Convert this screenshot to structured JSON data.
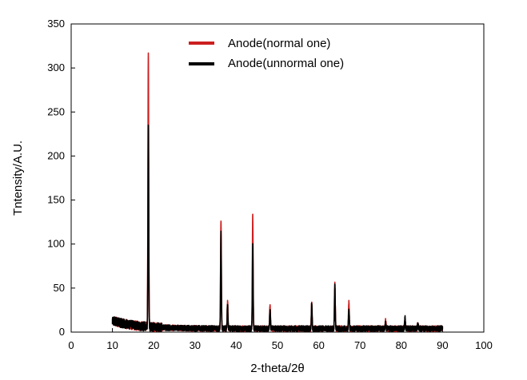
{
  "chart_data": {
    "type": "line",
    "title": "",
    "xlabel": "2-theta/2θ",
    "ylabel": "Tntensity/A.U.",
    "xlim": [
      0,
      100
    ],
    "ylim": [
      0,
      350
    ],
    "xticks": [
      0,
      10,
      20,
      30,
      40,
      50,
      60,
      70,
      80,
      90,
      100
    ],
    "yticks": [
      0,
      50,
      100,
      150,
      200,
      250,
      300,
      350
    ],
    "grid": false,
    "legend_position": "top-center",
    "peaks_note_free": null,
    "series": [
      {
        "name": "Anode(normal one)",
        "color": "#cc1f1f",
        "noise_level": 8,
        "peaks": [
          {
            "x": 18.7,
            "y": 316
          },
          {
            "x": 36.3,
            "y": 131
          },
          {
            "x": 37.9,
            "y": 38
          },
          {
            "x": 44.0,
            "y": 135
          },
          {
            "x": 48.2,
            "y": 34
          },
          {
            "x": 58.3,
            "y": 36
          },
          {
            "x": 63.9,
            "y": 58
          },
          {
            "x": 67.3,
            "y": 36
          },
          {
            "x": 76.2,
            "y": 15
          },
          {
            "x": 80.9,
            "y": 17
          },
          {
            "x": 84.0,
            "y": 11
          }
        ]
      },
      {
        "name": "Anode(unnormal one)",
        "color": "#000000",
        "noise_level": 8,
        "peaks": [
          {
            "x": 18.7,
            "y": 232
          },
          {
            "x": 36.3,
            "y": 115
          },
          {
            "x": 37.9,
            "y": 33
          },
          {
            "x": 44.0,
            "y": 100
          },
          {
            "x": 48.2,
            "y": 28
          },
          {
            "x": 58.3,
            "y": 35
          },
          {
            "x": 63.9,
            "y": 54
          },
          {
            "x": 67.3,
            "y": 30
          },
          {
            "x": 76.2,
            "y": 12
          },
          {
            "x": 80.9,
            "y": 18
          },
          {
            "x": 84.0,
            "y": 11
          }
        ]
      }
    ],
    "x_range": [
      10,
      90
    ]
  }
}
